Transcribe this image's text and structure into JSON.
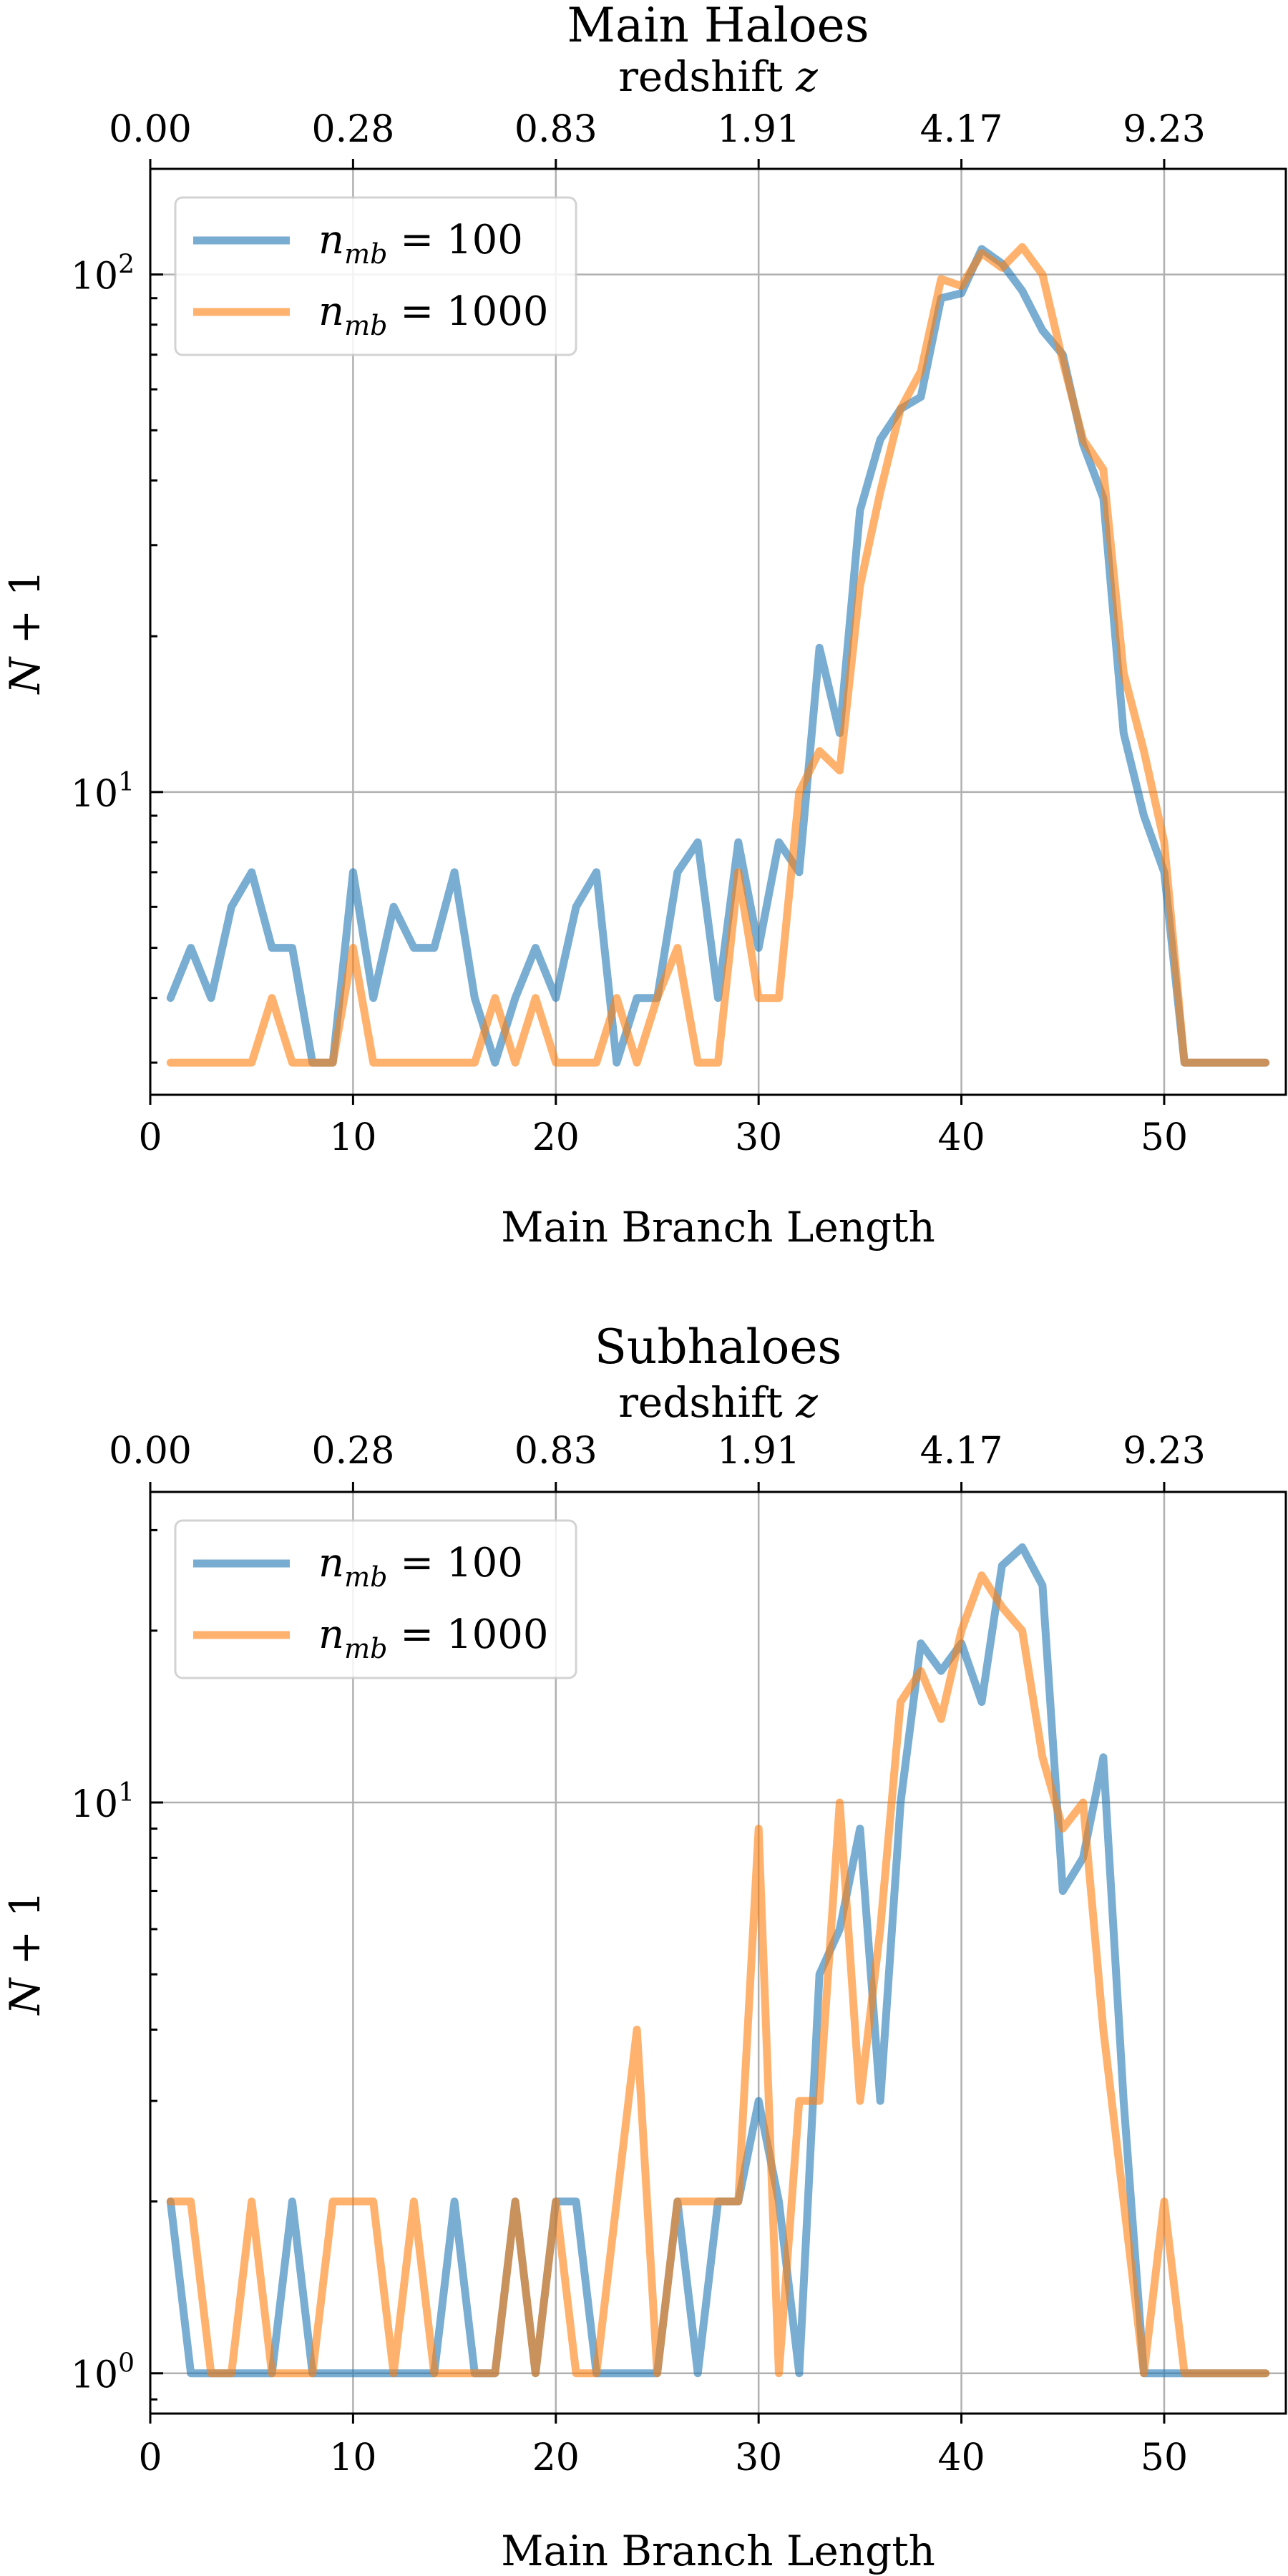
{
  "chart_data": [
    {
      "type": "line",
      "title": "Main Haloes",
      "xlabel": "Main Branch Length",
      "ylabel": "N + 1",
      "top_axis_label": "redshift z",
      "yscale": "log",
      "xlim": [
        0,
        56
      ],
      "ylim": [
        2.6,
        160
      ],
      "xticks": [
        0,
        10,
        20,
        30,
        40,
        50
      ],
      "top_xticks": [
        0,
        10,
        20,
        30,
        40,
        50
      ],
      "top_xtick_labels": [
        "0.00",
        "0.28",
        "0.83",
        "1.91",
        "4.17",
        "9.23"
      ],
      "yticks": [
        10,
        100
      ],
      "ytick_labels": [
        "10^1",
        "10^2"
      ],
      "grid": true,
      "legend_position": "top-left",
      "series": [
        {
          "name": "n_mb = 100",
          "color": "#1f77b4",
          "x": [
            1,
            2,
            3,
            4,
            5,
            6,
            7,
            8,
            9,
            10,
            11,
            12,
            13,
            14,
            15,
            16,
            17,
            18,
            19,
            20,
            21,
            22,
            23,
            24,
            25,
            26,
            27,
            28,
            29,
            30,
            31,
            32,
            33,
            34,
            35,
            36,
            37,
            38,
            39,
            40,
            41,
            42,
            43,
            44,
            45,
            46,
            47,
            48,
            49,
            50,
            51,
            52,
            53,
            54,
            55
          ],
          "values": [
            4,
            5,
            4,
            6,
            7,
            5,
            5,
            3,
            3,
            7,
            4,
            6,
            5,
            5,
            7,
            4,
            3,
            4,
            5,
            4,
            6,
            7,
            3,
            4,
            4,
            7,
            8,
            4,
            8,
            5,
            8,
            7,
            19,
            13,
            35,
            48,
            55,
            58,
            90,
            92,
            112,
            105,
            93,
            78,
            70,
            47,
            37,
            13,
            9,
            7,
            3,
            3,
            3,
            3,
            3
          ]
        },
        {
          "name": "n_mb = 1000",
          "color": "#ff7f0e",
          "x": [
            1,
            2,
            3,
            4,
            5,
            6,
            7,
            8,
            9,
            10,
            11,
            12,
            13,
            14,
            15,
            16,
            17,
            18,
            19,
            20,
            21,
            22,
            23,
            24,
            25,
            26,
            27,
            28,
            29,
            30,
            31,
            32,
            33,
            34,
            35,
            36,
            37,
            38,
            39,
            40,
            41,
            42,
            43,
            44,
            45,
            46,
            47,
            48,
            49,
            50,
            51,
            52,
            53,
            54,
            55
          ],
          "values": [
            3,
            3,
            3,
            3,
            3,
            4,
            3,
            3,
            3,
            5,
            3,
            3,
            3,
            3,
            3,
            3,
            4,
            3,
            4,
            3,
            3,
            3,
            4,
            3,
            4,
            5,
            3,
            3,
            7,
            4,
            4,
            10,
            12,
            11,
            25,
            38,
            55,
            65,
            98,
            95,
            110,
            103,
            113,
            100,
            68,
            48,
            42,
            17,
            12,
            8,
            3,
            3,
            3,
            3,
            3
          ]
        }
      ]
    },
    {
      "type": "line",
      "title": "Subhaloes",
      "xlabel": "Main Branch Length",
      "ylabel": "N + 1",
      "top_axis_label": "redshift z",
      "yscale": "log",
      "xlim": [
        0,
        56
      ],
      "ylim": [
        0.85,
        35
      ],
      "xticks": [
        0,
        10,
        20,
        30,
        40,
        50
      ],
      "top_xticks": [
        0,
        10,
        20,
        30,
        40,
        50
      ],
      "top_xtick_labels": [
        "0.00",
        "0.28",
        "0.83",
        "1.91",
        "4.17",
        "9.23"
      ],
      "yticks": [
        1,
        10
      ],
      "ytick_labels": [
        "10^0",
        "10^1"
      ],
      "grid": true,
      "legend_position": "top-left",
      "series": [
        {
          "name": "n_mb = 100",
          "color": "#1f77b4",
          "x": [
            1,
            2,
            3,
            4,
            5,
            6,
            7,
            8,
            9,
            10,
            11,
            12,
            13,
            14,
            15,
            16,
            17,
            18,
            19,
            20,
            21,
            22,
            23,
            24,
            25,
            26,
            27,
            28,
            29,
            30,
            31,
            32,
            33,
            34,
            35,
            36,
            37,
            38,
            39,
            40,
            41,
            42,
            43,
            44,
            45,
            46,
            47,
            48,
            49,
            50,
            51,
            52,
            53,
            54,
            55
          ],
          "values": [
            2,
            1,
            1,
            1,
            1,
            1,
            2,
            1,
            1,
            1,
            1,
            1,
            1,
            1,
            2,
            1,
            1,
            2,
            1,
            2,
            2,
            1,
            1,
            1,
            1,
            2,
            1,
            2,
            2,
            3,
            2,
            1,
            5,
            6,
            9,
            3,
            10,
            19,
            17,
            19,
            15,
            26,
            28,
            24,
            7,
            8,
            12,
            3,
            1,
            1,
            1,
            1,
            1,
            1,
            1
          ]
        },
        {
          "name": "n_mb = 1000",
          "color": "#ff7f0e",
          "x": [
            1,
            2,
            3,
            4,
            5,
            6,
            7,
            8,
            9,
            10,
            11,
            12,
            13,
            14,
            15,
            16,
            17,
            18,
            19,
            20,
            21,
            22,
            23,
            24,
            25,
            26,
            27,
            28,
            29,
            30,
            31,
            32,
            33,
            34,
            35,
            36,
            37,
            38,
            39,
            40,
            41,
            42,
            43,
            44,
            45,
            46,
            47,
            48,
            49,
            50,
            51,
            52,
            53,
            54,
            55
          ],
          "values": [
            2,
            2,
            1,
            1,
            2,
            1,
            1,
            1,
            2,
            2,
            2,
            1,
            2,
            1,
            1,
            1,
            1,
            2,
            1,
            2,
            1,
            1,
            2,
            4,
            1,
            2,
            2,
            2,
            2,
            9,
            1,
            3,
            3,
            10,
            3,
            6,
            15,
            17,
            14,
            20,
            25,
            22,
            20,
            12,
            9,
            10,
            4,
            2,
            1,
            2,
            1,
            1,
            1,
            1,
            1
          ]
        }
      ]
    }
  ]
}
